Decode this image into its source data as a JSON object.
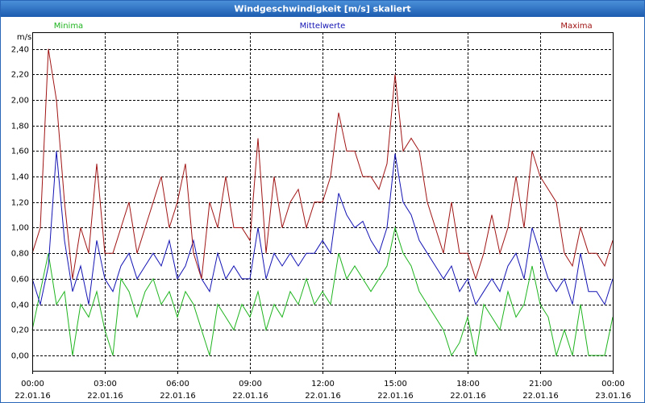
{
  "chart_data": {
    "type": "line",
    "title": "Windgeschwindigkeit [m/s] skaliert",
    "y_unit": "m/s",
    "legend": "top",
    "grid": true,
    "xlim": [
      0,
      1440
    ],
    "ylim": [
      -0.12,
      2.53
    ],
    "xticks": [
      {
        "value": 0,
        "label": "00:00"
      },
      {
        "value": 180,
        "label": "03:00"
      },
      {
        "value": 360,
        "label": "06:00"
      },
      {
        "value": 540,
        "label": "09:00"
      },
      {
        "value": 720,
        "label": "12:00"
      },
      {
        "value": 900,
        "label": "15:00"
      },
      {
        "value": 1080,
        "label": "18:00"
      },
      {
        "value": 1260,
        "label": "21:00"
      },
      {
        "value": 1440,
        "label": "00:00"
      }
    ],
    "xtick_dates": [
      "22.01.16",
      "22.01.16",
      "22.01.16",
      "22.01.16",
      "22.01.16",
      "22.01.16",
      "22.01.16",
      "22.01.16",
      "23.01.16"
    ],
    "yticks": [
      {
        "value": 0,
        "label": "0,00"
      },
      {
        "value": 0.2,
        "label": "0,20"
      },
      {
        "value": 0.4,
        "label": "0,40"
      },
      {
        "value": 0.6,
        "label": "0,60"
      },
      {
        "value": 0.8,
        "label": "0,80"
      },
      {
        "value": 1.0,
        "label": "1,00"
      },
      {
        "value": 1.2,
        "label": "1,20"
      },
      {
        "value": 1.4,
        "label": "1,40"
      },
      {
        "value": 1.6,
        "label": "1,60"
      },
      {
        "value": 1.8,
        "label": "1,80"
      },
      {
        "value": 2.0,
        "label": "2,00"
      },
      {
        "value": 2.2,
        "label": "2,20"
      },
      {
        "value": 2.4,
        "label": "2,40"
      }
    ],
    "x": [
      0,
      20,
      40,
      60,
      80,
      100,
      120,
      140,
      160,
      180,
      200,
      220,
      240,
      260,
      280,
      300,
      320,
      340,
      360,
      380,
      400,
      420,
      440,
      460,
      480,
      500,
      520,
      540,
      560,
      580,
      600,
      620,
      640,
      660,
      680,
      700,
      720,
      740,
      760,
      780,
      800,
      820,
      840,
      860,
      880,
      900,
      920,
      940,
      960,
      980,
      1000,
      1020,
      1040,
      1060,
      1080,
      1100,
      1120,
      1140,
      1160,
      1180,
      1200,
      1220,
      1240,
      1260,
      1280,
      1300,
      1320,
      1340,
      1360,
      1380,
      1400,
      1420,
      1440
    ],
    "series": [
      {
        "name": "Minima",
        "color": "#1fb41f",
        "values": [
          0.2,
          0.5,
          0.8,
          0.4,
          0.5,
          0.0,
          0.4,
          0.3,
          0.5,
          0.2,
          0.0,
          0.6,
          0.5,
          0.3,
          0.5,
          0.6,
          0.4,
          0.5,
          0.3,
          0.5,
          0.4,
          0.2,
          0.0,
          0.4,
          0.3,
          0.2,
          0.4,
          0.3,
          0.5,
          0.2,
          0.4,
          0.3,
          0.5,
          0.4,
          0.6,
          0.4,
          0.5,
          0.4,
          0.8,
          0.6,
          0.7,
          0.6,
          0.5,
          0.6,
          0.7,
          1.0,
          0.8,
          0.7,
          0.5,
          0.4,
          0.3,
          0.2,
          0.0,
          0.1,
          0.3,
          0.0,
          0.4,
          0.3,
          0.2,
          0.5,
          0.3,
          0.4,
          0.7,
          0.4,
          0.3,
          0.0,
          0.2,
          0.0,
          0.4,
          0.0,
          0.0,
          0.0,
          0.3
        ]
      },
      {
        "name": "Mittelwerte",
        "color": "#1414b4",
        "values": [
          0.6,
          0.4,
          0.7,
          1.6,
          0.9,
          0.5,
          0.7,
          0.4,
          0.9,
          0.6,
          0.5,
          0.7,
          0.8,
          0.6,
          0.7,
          0.8,
          0.7,
          0.9,
          0.6,
          0.7,
          0.9,
          0.6,
          0.5,
          0.8,
          0.6,
          0.7,
          0.6,
          0.6,
          1.0,
          0.6,
          0.8,
          0.7,
          0.8,
          0.7,
          0.8,
          0.8,
          0.9,
          0.8,
          1.27,
          1.1,
          1.0,
          1.05,
          0.9,
          0.8,
          1.0,
          1.58,
          1.2,
          1.1,
          0.9,
          0.8,
          0.7,
          0.6,
          0.7,
          0.5,
          0.6,
          0.4,
          0.5,
          0.6,
          0.5,
          0.7,
          0.8,
          0.6,
          1.0,
          0.8,
          0.6,
          0.5,
          0.6,
          0.4,
          0.8,
          0.5,
          0.5,
          0.4,
          0.6
        ]
      },
      {
        "name": "Maxima",
        "color": "#a01414",
        "values": [
          0.8,
          1.0,
          2.4,
          2.0,
          1.2,
          0.6,
          1.0,
          0.8,
          1.5,
          0.8,
          0.8,
          1.0,
          1.2,
          0.8,
          1.0,
          1.2,
          1.4,
          1.0,
          1.2,
          1.5,
          0.8,
          0.6,
          1.2,
          1.0,
          1.4,
          1.0,
          1.0,
          0.9,
          1.7,
          0.8,
          1.4,
          1.0,
          1.2,
          1.3,
          1.0,
          1.2,
          1.2,
          1.4,
          1.9,
          1.6,
          1.6,
          1.4,
          1.4,
          1.3,
          1.5,
          2.2,
          1.6,
          1.7,
          1.6,
          1.2,
          1.0,
          0.8,
          1.2,
          0.8,
          0.8,
          0.6,
          0.8,
          1.1,
          0.8,
          1.0,
          1.4,
          1.0,
          1.6,
          1.4,
          1.3,
          1.2,
          0.8,
          0.7,
          1.0,
          0.8,
          0.8,
          0.7,
          0.9
        ]
      }
    ]
  }
}
